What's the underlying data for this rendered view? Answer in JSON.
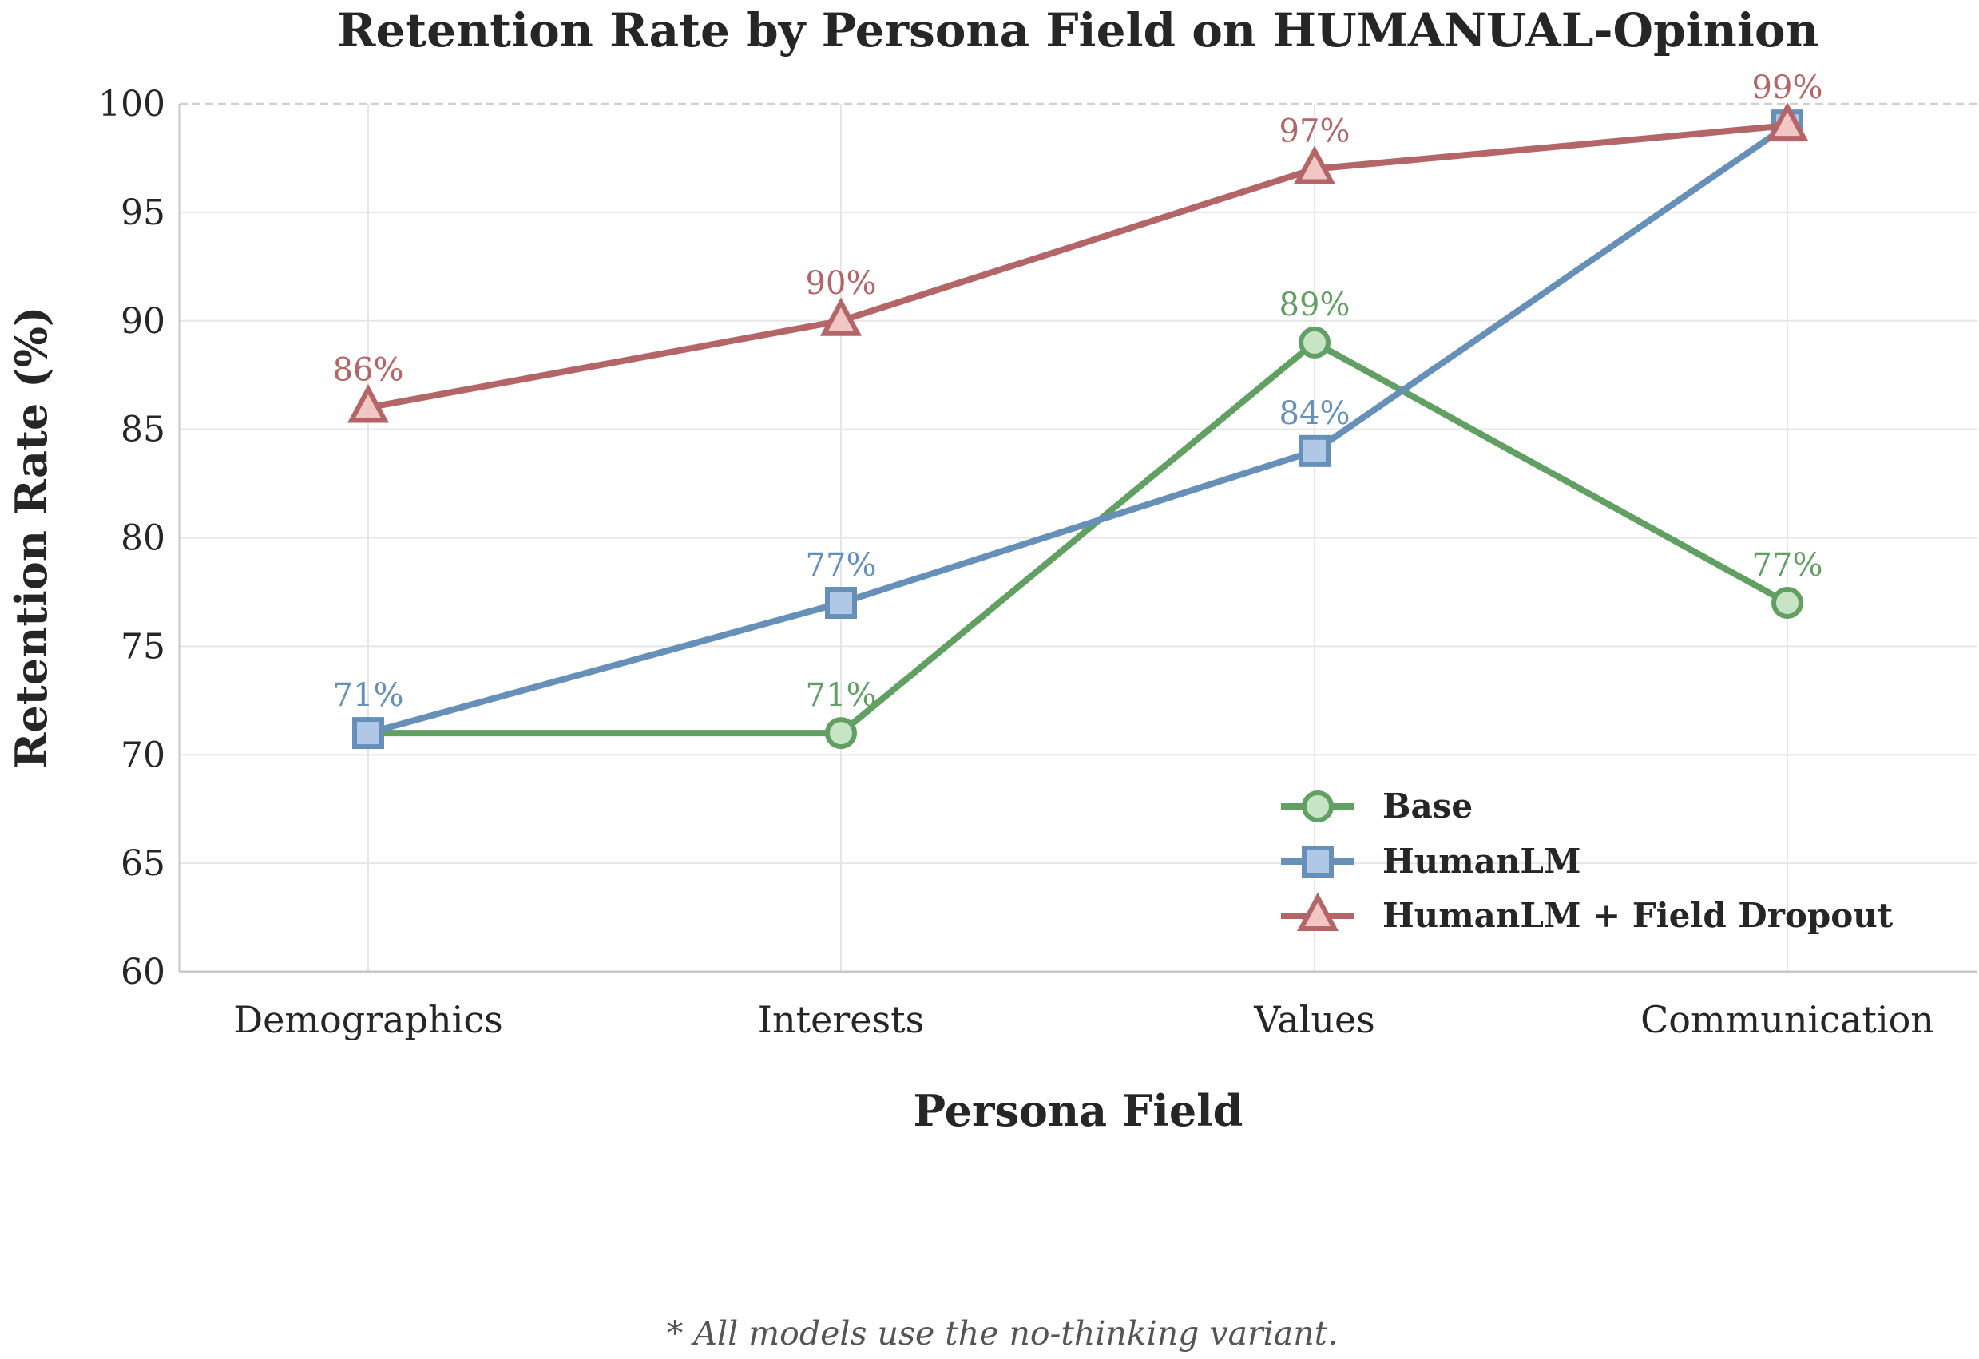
{
  "chart_data": {
    "type": "line",
    "title": "Retention Rate by Persona Field on HUMANUAL-Opinion",
    "xlabel": "Persona Field",
    "ylabel": "Retention Rate (%)",
    "categories": [
      "Demographics",
      "Interests",
      "Values",
      "Communication"
    ],
    "ylim": [
      60,
      100
    ],
    "yticks": [
      60,
      65,
      70,
      75,
      80,
      85,
      90,
      95,
      100
    ],
    "grid": true,
    "legend_position": "lower-right",
    "series": [
      {
        "name": "Base",
        "values": [
          71,
          71,
          89,
          77
        ],
        "labels": [
          "",
          "71%",
          "89%",
          "77%"
        ],
        "marker": "circle",
        "color": "#629f63",
        "fill": "#c7e5c4"
      },
      {
        "name": "HumanLM",
        "values": [
          71,
          77,
          84,
          99
        ],
        "labels": [
          "71%",
          "77%",
          "84%",
          ""
        ],
        "marker": "square",
        "color": "#6690b8",
        "fill": "#aec8e6"
      },
      {
        "name": "HumanLM + Field Dropout",
        "values": [
          86,
          90,
          97,
          99
        ],
        "labels": [
          "86%",
          "90%",
          "97%",
          "99%"
        ],
        "marker": "triangle",
        "color": "#b36567",
        "fill": "#f3c6c6"
      }
    ]
  },
  "footnote": "* All models use the no-thinking variant."
}
